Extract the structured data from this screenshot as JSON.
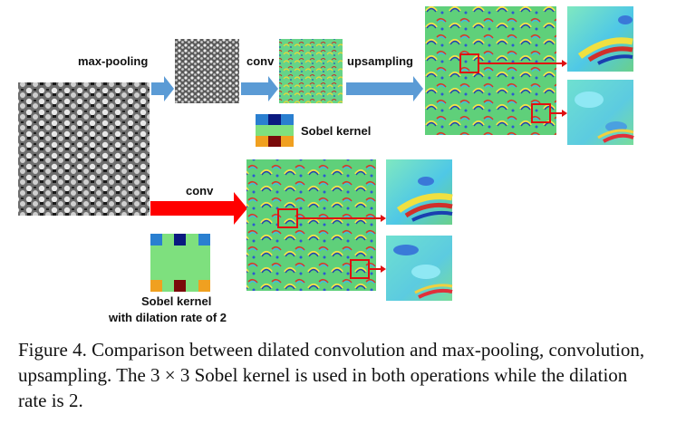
{
  "figure": {
    "labels": {
      "max_pooling": "max-pooling",
      "conv_top": "conv",
      "upsampling": "upsampling",
      "conv_bottom": "conv",
      "sobel_kernel": "Sobel kernel",
      "sobel_dilated_line1": "Sobel kernel",
      "sobel_dilated_line2": "with dilation rate of 2"
    },
    "colors": {
      "blue_arrow": "#5b9bd5",
      "red_arrow": "#ff0000",
      "highlight_box": "#e01010",
      "kernel_green": "#7ee07e",
      "kernel_blue": "#2a7fd0",
      "kernel_darkblue": "#0a1a80",
      "kernel_orange": "#f0a020",
      "kernel_darkred": "#7a0a0a"
    }
  },
  "caption": {
    "text": "Figure 4. Comparison between dilated convolution and max-pooling, convolution, upsampling. The 3 × 3 Sobel kernel is used in both operations while the dilation rate is 2."
  }
}
